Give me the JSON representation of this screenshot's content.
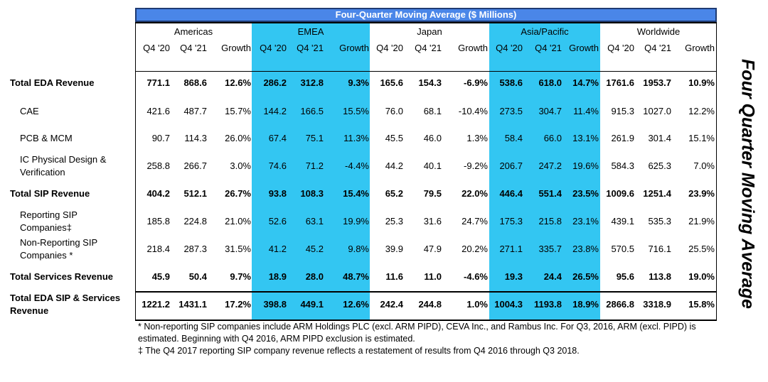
{
  "banner_title": "Four-Quarter Moving Average ($ Millions)",
  "side_title": "Four Quarter Moving Average",
  "regions": [
    "Americas",
    "EMEA",
    "Japan",
    "Asia/Pacific",
    "Worldwide"
  ],
  "col_headers": [
    "Q4 '20",
    "Q4 '21",
    "Growth"
  ],
  "rows": [
    {
      "label": "Total EDA Revenue",
      "bold": true,
      "indent": false,
      "values": [
        "771.1",
        "868.6",
        "12.6%",
        "286.2",
        "312.8",
        "9.3%",
        "165.6",
        "154.3",
        "-6.9%",
        "538.6",
        "618.0",
        "14.7%",
        "1761.6",
        "1953.7",
        "10.9%"
      ]
    },
    {
      "label": "CAE",
      "bold": false,
      "indent": true,
      "values": [
        "421.6",
        "487.7",
        "15.7%",
        "144.2",
        "166.5",
        "15.5%",
        "76.0",
        "68.1",
        "-10.4%",
        "273.5",
        "304.7",
        "11.4%",
        "915.3",
        "1027.0",
        "12.2%"
      ]
    },
    {
      "label": "PCB & MCM",
      "bold": false,
      "indent": true,
      "values": [
        "90.7",
        "114.3",
        "26.0%",
        "67.4",
        "75.1",
        "11.3%",
        "45.5",
        "46.0",
        "1.3%",
        "58.4",
        "66.0",
        "13.1%",
        "261.9",
        "301.4",
        "15.1%"
      ]
    },
    {
      "label": "IC Physical Design &",
      "label2": "Verification",
      "bold": false,
      "indent": true,
      "values": [
        "258.8",
        "266.7",
        "3.0%",
        "74.6",
        "71.2",
        "-4.4%",
        "44.2",
        "40.1",
        "-9.2%",
        "206.7",
        "247.2",
        "19.6%",
        "584.3",
        "625.3",
        "7.0%"
      ]
    },
    {
      "label": "Total SIP Revenue",
      "bold": true,
      "indent": false,
      "values": [
        "404.2",
        "512.1",
        "26.7%",
        "93.8",
        "108.3",
        "15.4%",
        "65.2",
        "79.5",
        "22.0%",
        "446.4",
        "551.4",
        "23.5%",
        "1009.6",
        "1251.4",
        "23.9%"
      ]
    },
    {
      "label": "Reporting SIP",
      "label2": "Companies‡",
      "bold": false,
      "indent": true,
      "values": [
        "185.8",
        "224.8",
        "21.0%",
        "52.6",
        "63.1",
        "19.9%",
        "25.3",
        "31.6",
        "24.7%",
        "175.3",
        "215.8",
        "23.1%",
        "439.1",
        "535.3",
        "21.9%"
      ]
    },
    {
      "label": "Non-Reporting SIP",
      "label2": "Companies *",
      "bold": false,
      "indent": true,
      "values": [
        "218.4",
        "287.3",
        "31.5%",
        "41.2",
        "45.2",
        "9.8%",
        "39.9",
        "47.9",
        "20.2%",
        "271.1",
        "335.7",
        "23.8%",
        "570.5",
        "716.1",
        "25.5%"
      ]
    },
    {
      "label": "Total Services Revenue",
      "bold": true,
      "indent": false,
      "values": [
        "45.9",
        "50.4",
        "9.7%",
        "18.9",
        "28.0",
        "48.7%",
        "11.6",
        "11.0",
        "-4.6%",
        "19.3",
        "24.4",
        "26.5%",
        "95.6",
        "113.8",
        "19.0%"
      ]
    },
    {
      "label": "Total EDA SIP & Services",
      "label2": "Revenue",
      "bold": true,
      "indent": false,
      "values": [
        "1221.2",
        "1431.1",
        "17.2%",
        "398.8",
        "449.1",
        "12.6%",
        "242.4",
        "244.8",
        "1.0%",
        "1004.3",
        "1193.8",
        "18.9%",
        "2866.8",
        "3318.9",
        "15.8%"
      ]
    }
  ],
  "notes": [
    "* Non-reporting SIP companies include ARM Holdings PLC (excl. ARM PIPD), CEVA Inc., and Rambus Inc. For Q3, 2016, ARM (excl. PIPD) is estimated. Beginning with Q4 2016, ARM PIPD exclusion is estimated.",
    "‡ The Q4 2017 reporting SIP company revenue reflects a restatement of results from Q4 2016 through Q3 2018."
  ],
  "colors": {
    "banner": "#4a86e8",
    "highlight": "#33c6f2",
    "rule": "#000000"
  }
}
